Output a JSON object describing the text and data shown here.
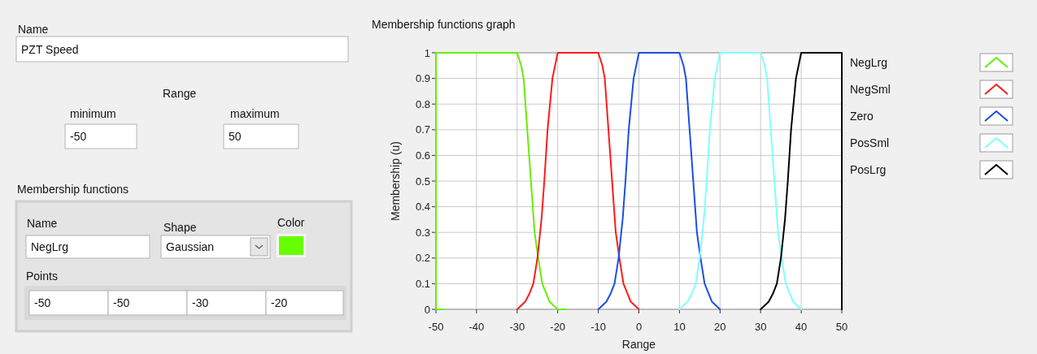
{
  "chart_data": [
    {
      "type": "other",
      "annotations": [
        "Name",
        "PZT Speed",
        "Range",
        "minimum",
        "-50",
        "maximum",
        "50",
        "Membership functions",
        "Name",
        "NegLrg",
        "Shape",
        "Gaussian",
        "Color",
        "Points",
        "-50",
        "-50",
        "-30",
        "-20"
      ]
    },
    {
      "type": "line",
      "title": "Membership functions graph",
      "xlabel": "Range",
      "ylabel": "Membership (u)",
      "xlim": [
        -50,
        50
      ],
      "ylim": [
        0,
        1
      ],
      "xticks": [
        -50,
        -40,
        -30,
        -20,
        -10,
        0,
        10,
        20,
        30,
        40,
        50
      ],
      "yticks": [
        0,
        0.1,
        0.2,
        0.3,
        0.4,
        0.5,
        0.6,
        0.7,
        0.8,
        0.9,
        1
      ],
      "grid": true,
      "legend": "right",
      "series": [
        {
          "name": "NegLrg",
          "color": "#66ee00",
          "x": [
            -48,
            -50,
            -50,
            -30,
            -29,
            -28.4,
            -27.5,
            -26.6,
            -25.7,
            -24.8,
            -23.8,
            -22,
            -20,
            -18
          ],
          "values": [
            0,
            0,
            1,
            1,
            0.95,
            0.9,
            0.7,
            0.5,
            0.3,
            0.2,
            0.1,
            0.03,
            0,
            0
          ]
        },
        {
          "name": "NegSml",
          "color": "#ff1a1a",
          "x": [
            -30,
            -28,
            -27,
            -26,
            -25,
            -24,
            -23.3,
            -22.5,
            -21.3,
            -20,
            -10,
            -9,
            -8.4,
            -7.5,
            -6.6,
            -5.7,
            -4.8,
            -3.8,
            -2,
            0
          ],
          "values": [
            0,
            0.03,
            0.06,
            0.1,
            0.2,
            0.35,
            0.5,
            0.7,
            0.9,
            1,
            1,
            0.95,
            0.9,
            0.7,
            0.5,
            0.3,
            0.2,
            0.1,
            0.03,
            0
          ]
        },
        {
          "name": "Zero",
          "color": "#1a4fe6",
          "x": [
            -10,
            -8,
            -7,
            -6,
            -5,
            -4,
            -3.3,
            -2.5,
            -1.3,
            0,
            10,
            11,
            11.6,
            12.5,
            13.4,
            14.3,
            15.2,
            16.2,
            18,
            20
          ],
          "values": [
            0,
            0.03,
            0.06,
            0.1,
            0.2,
            0.35,
            0.5,
            0.7,
            0.9,
            1,
            1,
            0.95,
            0.9,
            0.7,
            0.5,
            0.3,
            0.2,
            0.1,
            0.03,
            0
          ]
        },
        {
          "name": "PosSml",
          "color": "#80ffff",
          "x": [
            10,
            12,
            13,
            14,
            15,
            16,
            16.7,
            17.5,
            18.7,
            20,
            30,
            31,
            31.6,
            32.5,
            33.4,
            34.3,
            35.2,
            36.2,
            38,
            40
          ],
          "values": [
            0,
            0.03,
            0.06,
            0.1,
            0.2,
            0.35,
            0.5,
            0.7,
            0.9,
            1,
            1,
            0.95,
            0.9,
            0.7,
            0.5,
            0.3,
            0.2,
            0.1,
            0.03,
            0
          ]
        },
        {
          "name": "PosLrg",
          "color": "#000000",
          "x": [
            30,
            32,
            33,
            34,
            35,
            36,
            36.7,
            37.5,
            38.7,
            40,
            50,
            50
          ],
          "values": [
            0,
            0.03,
            0.06,
            0.1,
            0.2,
            0.35,
            0.5,
            0.7,
            0.9,
            1,
            1,
            0
          ]
        }
      ]
    }
  ]
}
